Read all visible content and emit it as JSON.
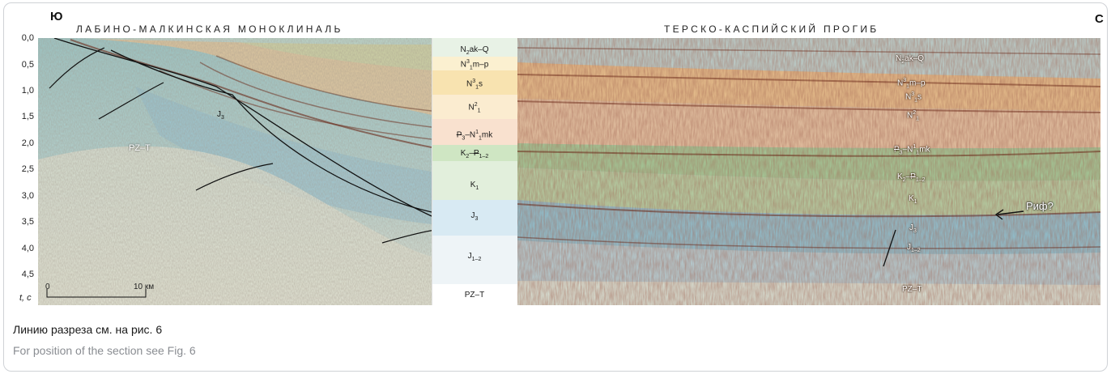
{
  "figure": {
    "corner_left": "Ю",
    "corner_right": "С",
    "region_left": "ЛАБИНО-МАЛКИНСКАЯ МОНОКЛИНАЛЬ",
    "region_right": "ТЕРСКО-КАСПИЙСКИЙ ПРОГИБ",
    "time_axis": {
      "ticks": [
        "0,0",
        "0,5",
        "1,0",
        "1,5",
        "2,0",
        "2,5",
        "3,0",
        "3,5",
        "4,0",
        "4,5"
      ],
      "unit_label": "t, с"
    },
    "scale_bar": {
      "start": "0",
      "end": "10 км"
    },
    "left_label_pz": "PZ–T",
    "left_label_j3": "J3",
    "rif_label": "Риф?",
    "stratigraphic_column": [
      {
        "base": "N",
        "sub": "2",
        "sup": "",
        "rest": "ak–Q"
      },
      {
        "base": "N",
        "sub": "1",
        "sup": "3",
        "rest": "m–p"
      },
      {
        "base": "N",
        "sub": "1",
        "sup": "3",
        "rest": "s"
      },
      {
        "base": "N",
        "sub": "1",
        "sup": "2",
        "rest": ""
      },
      {
        "base": "P3–N",
        "sub": "1",
        "sup": "1",
        "rest": "mk"
      },
      {
        "base": "K2–P1–2",
        "sub": "",
        "sup": "",
        "rest": ""
      },
      {
        "base": "K",
        "sub": "1",
        "sup": "",
        "rest": ""
      },
      {
        "base": "J",
        "sub": "3",
        "sup": "",
        "rest": ""
      },
      {
        "base": "J",
        "sub": "1–2",
        "sup": "",
        "rest": ""
      },
      {
        "base": "PZ–T",
        "sub": "",
        "sup": "",
        "rest": ""
      }
    ],
    "right_labels": [
      "N2ak–Q",
      "N13m–p",
      "N13s",
      "N12",
      "P3–N11mk",
      "K2–P1–2",
      "K1",
      "J3",
      "J1–2",
      "PZ–T"
    ],
    "colors": {
      "neogene": "#f2d49a",
      "paleogene": "#f4c8a8",
      "cretaceous_upper": "#b9dba8",
      "cretaceous_lower": "#c9e2c0",
      "jurassic_upper": "#a9d4e6",
      "jurassic_lower": "#d7e9f0",
      "basement": "#f4f4f4"
    }
  },
  "caption": {
    "ru": "Линию разреза см. на рис. 6",
    "en": "For position of the section see Fig. 6"
  }
}
